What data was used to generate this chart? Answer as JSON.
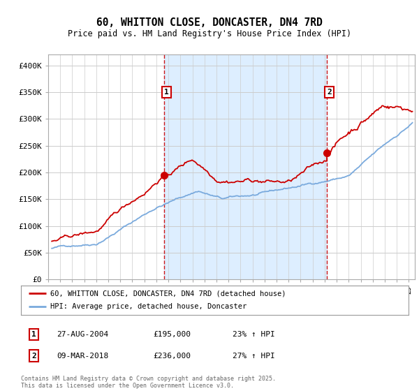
{
  "title": "60, WHITTON CLOSE, DONCASTER, DN4 7RD",
  "subtitle": "Price paid vs. HM Land Registry's House Price Index (HPI)",
  "ylim": [
    0,
    420000
  ],
  "yticks": [
    0,
    50000,
    100000,
    150000,
    200000,
    250000,
    300000,
    350000,
    400000
  ],
  "ytick_labels": [
    "£0",
    "£50K",
    "£100K",
    "£150K",
    "£200K",
    "£250K",
    "£300K",
    "£350K",
    "£400K"
  ],
  "legend_line1": "60, WHITTON CLOSE, DONCASTER, DN4 7RD (detached house)",
  "legend_line2": "HPI: Average price, detached house, Doncaster",
  "sale1_date": "27-AUG-2004",
  "sale1_price": "£195,000",
  "sale1_hpi": "23% ↑ HPI",
  "sale2_date": "09-MAR-2018",
  "sale2_price": "£236,000",
  "sale2_hpi": "27% ↑ HPI",
  "footer": "Contains HM Land Registry data © Crown copyright and database right 2025.\nThis data is licensed under the Open Government Licence v3.0.",
  "red_color": "#cc0000",
  "blue_color": "#7aaadd",
  "shade_color": "#ddeeff",
  "vline_color": "#cc0000",
  "fig_bg": "#ffffff",
  "plot_bg": "#ffffff",
  "grid_color": "#cccccc",
  "sale1_x_year": 2004.65,
  "sale2_x_year": 2018.18,
  "xlim_start": 1995,
  "xlim_end": 2025.5
}
